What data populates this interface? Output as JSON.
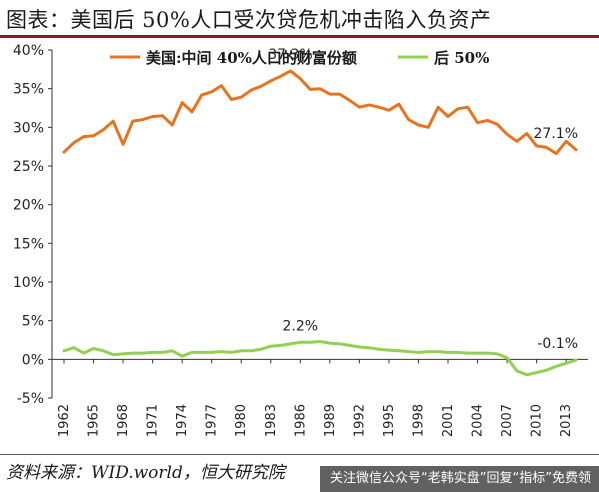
{
  "title": "图表：美国后 50%人口受次贷危机冲击陷入负资产",
  "source": "资料来源：WID.world，恒大研究院",
  "watermark": "关注微信公众号“老韩实盘”回复“指标”免费领",
  "colors": {
    "orange": "#e8731f",
    "green": "#92d050",
    "title_rule": "#8b1a1a"
  },
  "chart_data": {
    "type": "line",
    "title": "",
    "xlabel": "",
    "ylabel": "",
    "ylim": [
      -5,
      40
    ],
    "yticks": [
      "-5%",
      "0%",
      "5%",
      "10%",
      "15%",
      "20%",
      "25%",
      "30%",
      "35%",
      "40%"
    ],
    "xticks": [
      "1962",
      "1965",
      "1968",
      "1971",
      "1974",
      "1977",
      "1980",
      "1983",
      "1986",
      "1989",
      "1992",
      "1995",
      "1998",
      "2001",
      "2004",
      "2007",
      "2010",
      "2013"
    ],
    "grid": false,
    "legend": "top",
    "x": [
      1962,
      1963,
      1964,
      1965,
      1966,
      1967,
      1968,
      1969,
      1970,
      1971,
      1972,
      1973,
      1974,
      1975,
      1976,
      1977,
      1978,
      1979,
      1980,
      1981,
      1982,
      1983,
      1984,
      1985,
      1986,
      1987,
      1988,
      1989,
      1990,
      1991,
      1992,
      1993,
      1994,
      1995,
      1996,
      1997,
      1998,
      1999,
      2000,
      2001,
      2002,
      2003,
      2004,
      2005,
      2006,
      2007,
      2008,
      2009,
      2010,
      2011,
      2012,
      2013,
      2014
    ],
    "series": [
      {
        "name": "美国:中间 40%人口的财富份额",
        "color": "#e8731f",
        "values": [
          26.8,
          28.0,
          28.8,
          28.9,
          29.7,
          30.8,
          27.8,
          30.8,
          31.0,
          31.4,
          31.5,
          30.3,
          33.2,
          32.0,
          34.2,
          34.6,
          35.4,
          33.6,
          33.9,
          34.8,
          35.3,
          36.0,
          36.6,
          37.3,
          36.3,
          34.9,
          35.0,
          34.3,
          34.3,
          33.5,
          32.6,
          32.9,
          32.6,
          32.2,
          33.0,
          31.0,
          30.3,
          30.0,
          32.6,
          31.4,
          32.4,
          32.6,
          30.6,
          30.9,
          30.4,
          29.1,
          28.2,
          29.2,
          27.6,
          27.4,
          26.6,
          28.2,
          27.1
        ]
      },
      {
        "name": "后 50%",
        "color": "#92d050",
        "values": [
          1.1,
          1.5,
          0.8,
          1.4,
          1.1,
          0.6,
          0.7,
          0.8,
          0.8,
          0.9,
          0.9,
          1.1,
          0.4,
          0.9,
          0.9,
          0.9,
          1.0,
          0.9,
          1.1,
          1.1,
          1.3,
          1.7,
          1.8,
          2.0,
          2.2,
          2.2,
          2.3,
          2.1,
          2.0,
          1.8,
          1.6,
          1.5,
          1.3,
          1.2,
          1.1,
          1.0,
          0.9,
          1.0,
          1.0,
          0.9,
          0.9,
          0.8,
          0.8,
          0.8,
          0.7,
          0.2,
          -1.5,
          -2.0,
          -1.7,
          -1.4,
          -0.9,
          -0.5,
          -0.1
        ]
      }
    ],
    "annotations": [
      {
        "x": 1985,
        "y": 37.3,
        "text": "37.3%",
        "series": 0
      },
      {
        "x": 2014,
        "y": 27.1,
        "text": "27.1%",
        "series": 0
      },
      {
        "x": 1986,
        "y": 2.2,
        "text": "2.2%",
        "series": 1
      },
      {
        "x": 2014,
        "y": -0.1,
        "text": "-0.1%",
        "series": 1
      }
    ]
  }
}
